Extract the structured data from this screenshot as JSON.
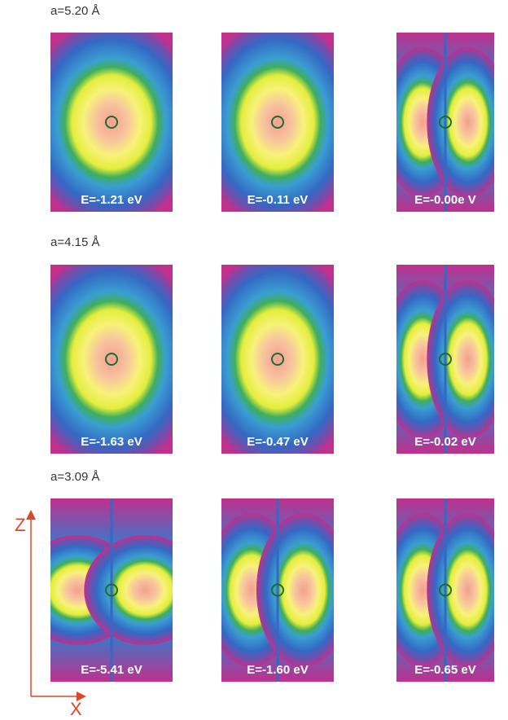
{
  "rows": [
    {
      "label": "a=5.20 Å",
      "panels": [
        {
          "label": "E=-1.21 eV"
        },
        {
          "label": "E=-0.11 eV"
        },
        {
          "label": "E=-0.00e V"
        }
      ]
    },
    {
      "label": "a=4.15 Å",
      "panels": [
        {
          "label": "E=-1.63 eV"
        },
        {
          "label": "E=-0.47 eV"
        },
        {
          "label": "E=-0.02 eV"
        }
      ]
    },
    {
      "label": "a=3.09 Å",
      "panels": [
        {
          "label": "E=-5.41 eV"
        },
        {
          "label": "E=-1.60 eV"
        },
        {
          "label": "E=-0.65 eV"
        }
      ]
    }
  ],
  "axes": {
    "z": "Z",
    "x": "X"
  }
}
